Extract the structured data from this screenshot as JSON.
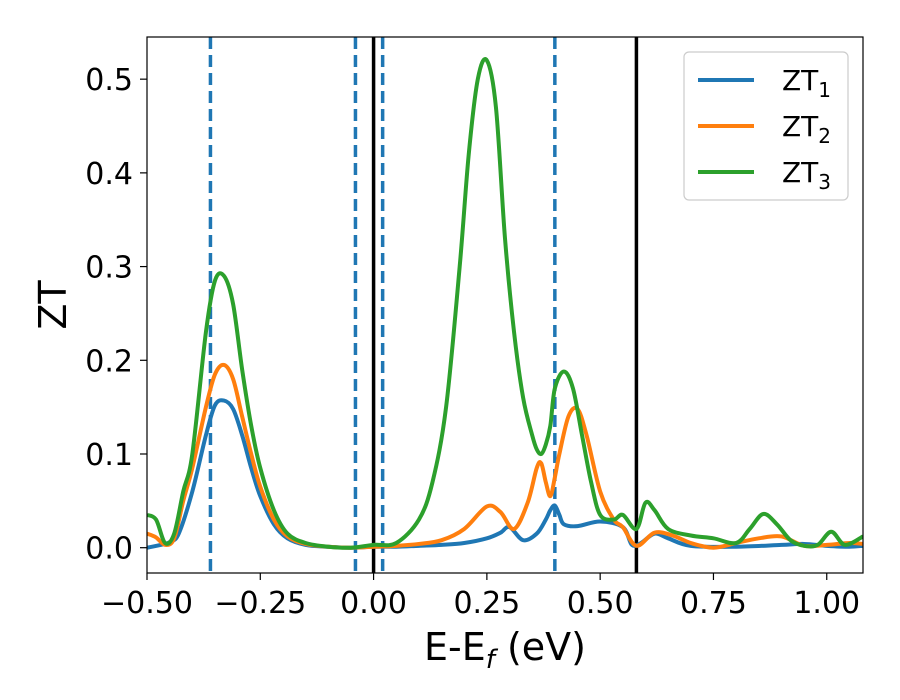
{
  "chart_data": {
    "type": "line",
    "title": "",
    "xlabel": {
      "base": "E-E",
      "sub": "f",
      "rest": " (eV)"
    },
    "ylabel": "ZT",
    "xlim": [
      -0.5,
      1.08
    ],
    "ylim": [
      -0.027,
      0.545
    ],
    "xticks": [
      -0.5,
      -0.25,
      0.0,
      0.25,
      0.5,
      0.75,
      1.0
    ],
    "xtick_labels": [
      "−0.50",
      "−0.25",
      "0.00",
      "0.25",
      "0.50",
      "0.75",
      "1.00"
    ],
    "yticks": [
      0.0,
      0.1,
      0.2,
      0.3,
      0.4,
      0.5
    ],
    "ytick_labels": [
      "0.0",
      "0.1",
      "0.2",
      "0.3",
      "0.4",
      "0.5"
    ],
    "grid": false,
    "legend_position": "top-right",
    "vlines_dashed": [
      -0.36,
      -0.04,
      0.02,
      0.4
    ],
    "vlines_solid": [
      0.0,
      0.58
    ],
    "series": [
      {
        "name": "ZT",
        "name_sub": "1",
        "color": "#1f77b4",
        "x": [
          -0.5,
          -0.47,
          -0.45,
          -0.43,
          -0.4,
          -0.37,
          -0.35,
          -0.33,
          -0.31,
          -0.29,
          -0.27,
          -0.25,
          -0.22,
          -0.19,
          -0.15,
          -0.1,
          -0.05,
          0.0,
          0.05,
          0.1,
          0.15,
          0.2,
          0.25,
          0.28,
          0.3,
          0.33,
          0.36,
          0.38,
          0.39,
          0.4,
          0.41,
          0.42,
          0.45,
          0.5,
          0.55,
          0.57,
          0.59,
          0.62,
          0.65,
          0.7,
          0.8,
          0.9,
          0.95,
          1.0,
          1.05,
          1.08
        ],
        "y": [
          0.0,
          0.003,
          0.006,
          0.015,
          0.06,
          0.12,
          0.152,
          0.157,
          0.148,
          0.12,
          0.085,
          0.055,
          0.025,
          0.01,
          0.003,
          0.001,
          0.0,
          0.001,
          0.001,
          0.002,
          0.003,
          0.005,
          0.01,
          0.016,
          0.022,
          0.008,
          0.015,
          0.03,
          0.04,
          0.045,
          0.035,
          0.025,
          0.023,
          0.028,
          0.022,
          0.003,
          0.005,
          0.015,
          0.01,
          0.002,
          0.001,
          0.003,
          0.004,
          0.002,
          0.001,
          0.002
        ]
      },
      {
        "name": "ZT",
        "name_sub": "2",
        "color": "#ff7f0e",
        "x": [
          -0.5,
          -0.48,
          -0.46,
          -0.44,
          -0.42,
          -0.4,
          -0.37,
          -0.35,
          -0.33,
          -0.31,
          -0.29,
          -0.27,
          -0.25,
          -0.22,
          -0.19,
          -0.15,
          -0.1,
          -0.05,
          0.0,
          0.05,
          0.1,
          0.15,
          0.2,
          0.25,
          0.28,
          0.31,
          0.34,
          0.36,
          0.37,
          0.38,
          0.39,
          0.4,
          0.41,
          0.43,
          0.45,
          0.47,
          0.5,
          0.53,
          0.55,
          0.58,
          0.62,
          0.66,
          0.7,
          0.75,
          0.8,
          0.85,
          0.9,
          0.95,
          1.0,
          1.05,
          1.08
        ],
        "y": [
          0.015,
          0.011,
          0.003,
          0.01,
          0.05,
          0.085,
          0.15,
          0.185,
          0.195,
          0.18,
          0.14,
          0.1,
          0.065,
          0.03,
          0.012,
          0.004,
          0.001,
          0.0,
          0.001,
          0.002,
          0.004,
          0.008,
          0.02,
          0.044,
          0.038,
          0.02,
          0.048,
          0.085,
          0.09,
          0.07,
          0.055,
          0.075,
          0.1,
          0.14,
          0.148,
          0.12,
          0.06,
          0.03,
          0.022,
          0.002,
          0.016,
          0.013,
          0.005,
          0.0,
          0.005,
          0.01,
          0.012,
          0.002,
          0.003,
          0.005,
          0.004
        ]
      },
      {
        "name": "ZT",
        "name_sub": "3",
        "color": "#2ca02c",
        "x": [
          -0.5,
          -0.48,
          -0.46,
          -0.44,
          -0.42,
          -0.4,
          -0.37,
          -0.35,
          -0.33,
          -0.31,
          -0.29,
          -0.27,
          -0.25,
          -0.22,
          -0.19,
          -0.15,
          -0.1,
          -0.05,
          0.0,
          0.05,
          0.1,
          0.13,
          0.16,
          0.19,
          0.21,
          0.23,
          0.25,
          0.27,
          0.29,
          0.31,
          0.33,
          0.35,
          0.36,
          0.37,
          0.38,
          0.39,
          0.4,
          0.42,
          0.44,
          0.46,
          0.48,
          0.5,
          0.53,
          0.55,
          0.58,
          0.6,
          0.62,
          0.65,
          0.7,
          0.75,
          0.8,
          0.83,
          0.86,
          0.89,
          0.92,
          0.95,
          0.98,
          1.01,
          1.04,
          1.08
        ],
        "y": [
          0.035,
          0.03,
          0.005,
          0.015,
          0.06,
          0.1,
          0.23,
          0.285,
          0.29,
          0.26,
          0.19,
          0.13,
          0.085,
          0.04,
          0.015,
          0.005,
          0.001,
          0.0,
          0.003,
          0.005,
          0.03,
          0.07,
          0.15,
          0.3,
          0.42,
          0.5,
          0.52,
          0.47,
          0.33,
          0.23,
          0.16,
          0.12,
          0.105,
          0.1,
          0.11,
          0.13,
          0.17,
          0.188,
          0.17,
          0.12,
          0.07,
          0.035,
          0.03,
          0.035,
          0.02,
          0.048,
          0.04,
          0.02,
          0.013,
          0.01,
          0.005,
          0.02,
          0.036,
          0.025,
          0.008,
          0.002,
          0.003,
          0.017,
          0.003,
          0.012
        ]
      }
    ]
  }
}
